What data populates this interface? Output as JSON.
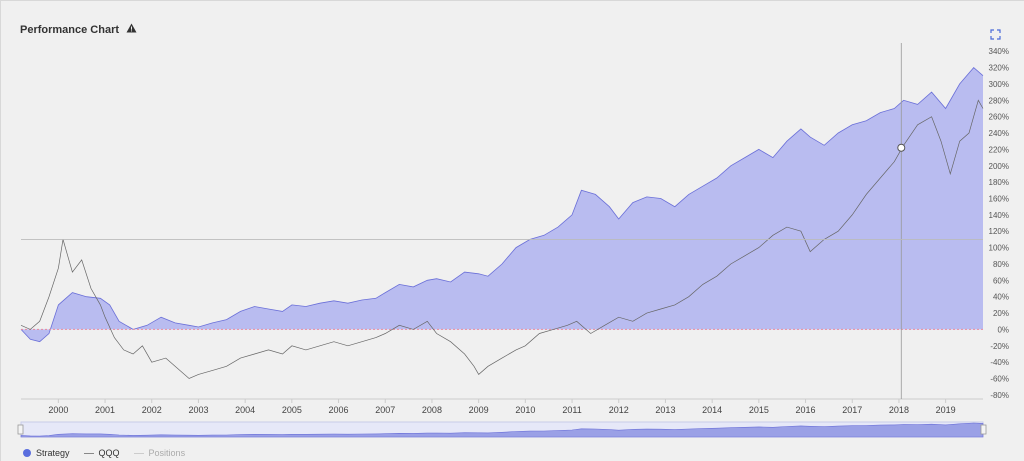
{
  "header": {
    "title": "Performance Chart",
    "warning_icon": "warning-triangle-icon",
    "expand_icon": "expand-icon"
  },
  "colors": {
    "strategy_fill": "#b9bcf0",
    "strategy_line": "#6a6fd8",
    "qqq_line": "#666666",
    "zero_line": "#e88aa0",
    "background": "#f0f0f0"
  },
  "legend": [
    {
      "label": "Strategy",
      "style": "dot"
    },
    {
      "label": "QQQ",
      "style": "line"
    },
    {
      "label": "Positions",
      "style": "line-dim"
    }
  ],
  "chart_data": {
    "type": "area",
    "x_ticks": [
      "2000",
      "2001",
      "2002",
      "2003",
      "2004",
      "2005",
      "2006",
      "2007",
      "2008",
      "2009",
      "2010",
      "2011",
      "2012",
      "2013",
      "2014",
      "2015",
      "2016",
      "2017",
      "2018",
      "2019"
    ],
    "y_ticks": [
      340,
      320,
      300,
      280,
      260,
      240,
      220,
      200,
      180,
      160,
      140,
      120,
      100,
      80,
      60,
      40,
      20,
      0,
      -20,
      -40,
      -60,
      -80
    ],
    "y_tick_suffix": "%",
    "xlim": [
      1999.2,
      2019.8
    ],
    "ylim": [
      -85,
      350
    ],
    "series": [
      {
        "name": "Strategy",
        "x": [
          1999.2,
          1999.4,
          1999.6,
          1999.8,
          2000.0,
          2000.3,
          2000.6,
          2000.9,
          2001.1,
          2001.3,
          2001.6,
          2001.9,
          2002.2,
          2002.5,
          2002.8,
          2003.0,
          2003.3,
          2003.6,
          2003.9,
          2004.2,
          2004.5,
          2004.8,
          2005.0,
          2005.3,
          2005.6,
          2005.9,
          2006.2,
          2006.5,
          2006.8,
          2007.0,
          2007.3,
          2007.6,
          2007.9,
          2008.1,
          2008.4,
          2008.7,
          2009.0,
          2009.2,
          2009.5,
          2009.8,
          2010.1,
          2010.4,
          2010.7,
          2011.0,
          2011.2,
          2011.5,
          2011.8,
          2012.0,
          2012.3,
          2012.6,
          2012.9,
          2013.2,
          2013.5,
          2013.8,
          2014.1,
          2014.4,
          2014.7,
          2015.0,
          2015.3,
          2015.6,
          2015.9,
          2016.1,
          2016.4,
          2016.7,
          2017.0,
          2017.3,
          2017.6,
          2017.9,
          2018.1,
          2018.4,
          2018.7,
          2019.0,
          2019.3,
          2019.6,
          2019.8
        ],
        "y": [
          0,
          -12,
          -15,
          -5,
          30,
          45,
          40,
          38,
          30,
          10,
          0,
          5,
          15,
          8,
          5,
          3,
          8,
          12,
          22,
          28,
          25,
          22,
          30,
          28,
          32,
          35,
          32,
          36,
          38,
          45,
          55,
          52,
          60,
          62,
          58,
          70,
          68,
          65,
          80,
          100,
          110,
          115,
          125,
          140,
          170,
          165,
          150,
          135,
          155,
          162,
          160,
          150,
          165,
          175,
          185,
          200,
          210,
          220,
          210,
          230,
          245,
          235,
          225,
          240,
          250,
          255,
          265,
          270,
          280,
          275,
          290,
          270,
          300,
          320,
          310
        ]
      },
      {
        "name": "QQQ",
        "x": [
          1999.2,
          1999.4,
          1999.6,
          1999.8,
          2000.0,
          2000.1,
          2000.2,
          2000.3,
          2000.5,
          2000.7,
          2000.9,
          2001.0,
          2001.2,
          2001.4,
          2001.6,
          2001.8,
          2002.0,
          2002.3,
          2002.6,
          2002.8,
          2003.0,
          2003.3,
          2003.6,
          2003.9,
          2004.2,
          2004.5,
          2004.8,
          2005.0,
          2005.3,
          2005.6,
          2005.9,
          2006.2,
          2006.5,
          2006.8,
          2007.0,
          2007.3,
          2007.6,
          2007.9,
          2008.1,
          2008.4,
          2008.7,
          2008.9,
          2009.0,
          2009.2,
          2009.5,
          2009.8,
          2010.0,
          2010.3,
          2010.6,
          2010.9,
          2011.1,
          2011.4,
          2011.7,
          2012.0,
          2012.3,
          2012.6,
          2012.9,
          2013.2,
          2013.5,
          2013.8,
          2014.1,
          2014.4,
          2014.7,
          2015.0,
          2015.3,
          2015.6,
          2015.9,
          2016.1,
          2016.4,
          2016.7,
          2017.0,
          2017.3,
          2017.6,
          2017.9,
          2018.1,
          2018.4,
          2018.7,
          2018.9,
          2019.1,
          2019.3,
          2019.5,
          2019.7,
          2019.8
        ],
        "y": [
          5,
          0,
          10,
          40,
          75,
          110,
          90,
          70,
          85,
          50,
          30,
          15,
          -10,
          -25,
          -30,
          -20,
          -40,
          -35,
          -50,
          -60,
          -55,
          -50,
          -45,
          -35,
          -30,
          -25,
          -30,
          -20,
          -25,
          -20,
          -15,
          -20,
          -15,
          -10,
          -5,
          5,
          0,
          10,
          -5,
          -15,
          -30,
          -45,
          -55,
          -45,
          -35,
          -25,
          -20,
          -5,
          0,
          5,
          10,
          -5,
          5,
          15,
          10,
          20,
          25,
          30,
          40,
          55,
          65,
          80,
          90,
          100,
          115,
          125,
          120,
          95,
          110,
          120,
          140,
          165,
          185,
          205,
          225,
          250,
          260,
          230,
          190,
          230,
          240,
          280,
          270
        ]
      }
    ],
    "crosshair": {
      "x": 2018.05,
      "y": 110
    },
    "navigator": {
      "strategy_fill": true
    }
  }
}
